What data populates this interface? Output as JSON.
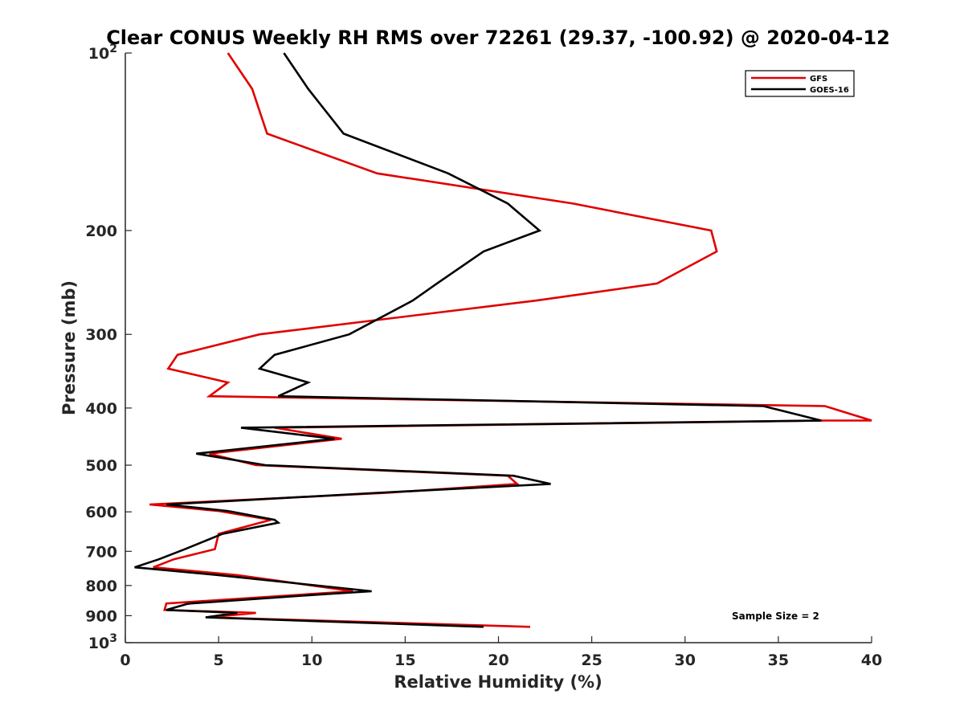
{
  "chart_data": {
    "type": "line",
    "title": "Clear CONUS Weekly RH RMS over 72261 (29.37, -100.92) @ 2020-04-12",
    "xlabel": "Relative Humidity (%)",
    "ylabel": "Pressure (mb)",
    "xlim": [
      0,
      40
    ],
    "ylim": [
      100,
      1000
    ],
    "y_scale": "log",
    "y_reversed": true,
    "grid": false,
    "legend_position": "top-right",
    "x_ticks": [
      "0",
      "5",
      "10",
      "15",
      "20",
      "25",
      "30",
      "35",
      "40"
    ],
    "y_ticks": [
      {
        "value": 100,
        "base": "10",
        "exp": "2"
      },
      {
        "value": 200,
        "label": "200"
      },
      {
        "value": 300,
        "label": "300"
      },
      {
        "value": 400,
        "label": "400"
      },
      {
        "value": 500,
        "label": "500"
      },
      {
        "value": 600,
        "label": "600"
      },
      {
        "value": 700,
        "label": "700"
      },
      {
        "value": 800,
        "label": "800"
      },
      {
        "value": 900,
        "label": "900"
      },
      {
        "value": 1000,
        "base": "10",
        "exp": "3"
      }
    ],
    "annotation": "Sample Size = 2",
    "series": [
      {
        "name": "GFS",
        "color": "#e00000",
        "points": [
          [
            5.5,
            100
          ],
          [
            6.8,
            115
          ],
          [
            7.6,
            137
          ],
          [
            13.5,
            160
          ],
          [
            24.0,
            180
          ],
          [
            31.4,
            200
          ],
          [
            31.7,
            217
          ],
          [
            28.5,
            246
          ],
          [
            22.0,
            263
          ],
          [
            7.2,
            300
          ],
          [
            2.8,
            325
          ],
          [
            2.3,
            343
          ],
          [
            5.5,
            362
          ],
          [
            4.5,
            382
          ],
          [
            37.5,
            397
          ],
          [
            40.0,
            420
          ],
          [
            37.5,
            420
          ],
          [
            8.0,
            432
          ],
          [
            11.6,
            451
          ],
          [
            4.5,
            478
          ],
          [
            7.0,
            500
          ],
          [
            20.5,
            521
          ],
          [
            21.0,
            538
          ],
          [
            14.0,
            557
          ],
          [
            1.3,
            583
          ],
          [
            5.0,
            598
          ],
          [
            7.8,
            619
          ],
          [
            5.0,
            654
          ],
          [
            4.8,
            694
          ],
          [
            2.6,
            722
          ],
          [
            1.5,
            745
          ],
          [
            6.0,
            768
          ],
          [
            12.2,
            818
          ],
          [
            2.2,
            858
          ],
          [
            2.1,
            880
          ],
          [
            7.0,
            890
          ],
          [
            4.5,
            906
          ],
          [
            21.7,
            940
          ]
        ]
      },
      {
        "name": "GOES-16",
        "color": "#000000",
        "points": [
          [
            8.5,
            100
          ],
          [
            9.8,
            115
          ],
          [
            11.7,
            137
          ],
          [
            17.3,
            160
          ],
          [
            20.5,
            180
          ],
          [
            22.2,
            200
          ],
          [
            19.2,
            217
          ],
          [
            16.7,
            246
          ],
          [
            15.4,
            263
          ],
          [
            12.0,
            300
          ],
          [
            8.0,
            325
          ],
          [
            7.2,
            343
          ],
          [
            9.8,
            362
          ],
          [
            8.2,
            382
          ],
          [
            34.2,
            397
          ],
          [
            37.3,
            420
          ],
          [
            6.2,
            432
          ],
          [
            11.2,
            451
          ],
          [
            3.8,
            478
          ],
          [
            7.5,
            500
          ],
          [
            20.8,
            521
          ],
          [
            22.8,
            538
          ],
          [
            13.5,
            557
          ],
          [
            2.2,
            583
          ],
          [
            5.5,
            598
          ],
          [
            8.0,
            619
          ],
          [
            8.2,
            626
          ],
          [
            5.2,
            654
          ],
          [
            3.2,
            694
          ],
          [
            1.8,
            722
          ],
          [
            0.5,
            745
          ],
          [
            5.0,
            768
          ],
          [
            13.2,
            818
          ],
          [
            10.8,
            827
          ],
          [
            3.5,
            858
          ],
          [
            3.3,
            860
          ],
          [
            2.2,
            880
          ],
          [
            6.0,
            890
          ],
          [
            4.3,
            906
          ],
          [
            19.2,
            940
          ]
        ]
      }
    ]
  }
}
